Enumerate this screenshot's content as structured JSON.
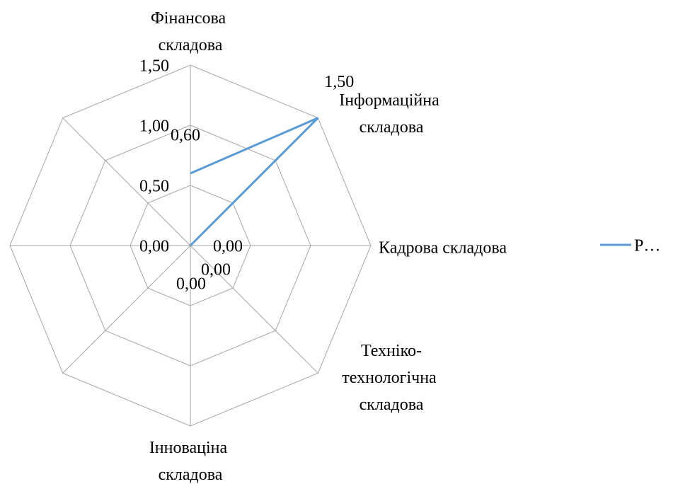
{
  "chart_data": {
    "type": "radar",
    "categories": [
      "Фінансова складова",
      "Інформаційна складова",
      "Кадрова складова",
      "Техніко-технологічна складова",
      "Інноваціна складова",
      null,
      null,
      null
    ],
    "series": [
      {
        "name": "Р…",
        "color": "#5b9bd5",
        "values": [
          0.6,
          1.5,
          0,
          0,
          0,
          null,
          null,
          null
        ],
        "value_labels": [
          "0,60",
          "1,50",
          "0,00",
          "0,00",
          "0,00",
          null,
          null,
          null
        ]
      }
    ],
    "ylim": [
      0,
      1.5
    ],
    "yticks": [
      {
        "value": 0,
        "label": "0,00"
      },
      {
        "value": 0.5,
        "label": "0,50"
      },
      {
        "value": 1,
        "label": "1,00"
      },
      {
        "value": 1.5,
        "label": "1,50"
      }
    ],
    "grid": true,
    "legend": "right"
  }
}
